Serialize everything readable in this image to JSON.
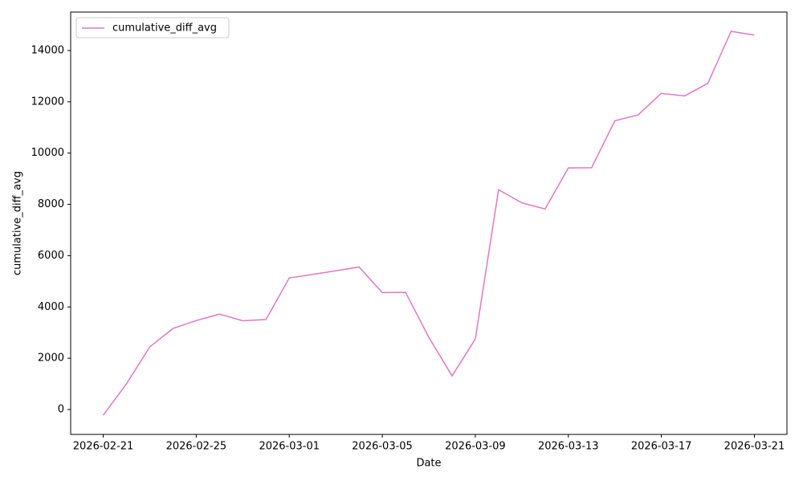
{
  "chart_data": {
    "type": "line",
    "xlabel": "Date",
    "ylabel": "cumulative_diff_avg",
    "x": [
      "2026-02-21",
      "2026-02-22",
      "2026-02-23",
      "2026-02-24",
      "2026-02-25",
      "2026-02-26",
      "2026-02-27",
      "2026-02-28",
      "2026-03-01",
      "2026-03-02",
      "2026-03-03",
      "2026-03-04",
      "2026-03-05",
      "2026-03-06",
      "2026-03-07",
      "2026-03-08",
      "2026-03-09",
      "2026-03-10",
      "2026-03-11",
      "2026-03-12",
      "2026-03-13",
      "2026-03-14",
      "2026-03-15",
      "2026-03-16",
      "2026-03-17",
      "2026-03-18",
      "2026-03-19",
      "2026-03-20",
      "2026-03-21"
    ],
    "series": [
      {
        "name": "cumulative_diff_avg",
        "color": "#e377c2",
        "values": [
          -220,
          1000,
          2440,
          3160,
          3470,
          3720,
          3460,
          3510,
          5130,
          5270,
          5410,
          5560,
          4560,
          4570,
          2820,
          1310,
          2750,
          8570,
          8060,
          7820,
          9420,
          9430,
          11260,
          11490,
          12330,
          12230,
          12720,
          14750,
          14600
        ]
      }
    ],
    "xlim": [
      "2026-02-19T14:24",
      "2026-03-22T09:36"
    ],
    "xticks": [
      "2026-02-21",
      "2026-02-25",
      "2026-03-01",
      "2026-03-05",
      "2026-03-09",
      "2026-03-13",
      "2026-03-17",
      "2026-03-21"
    ],
    "ylim": [
      -970,
      15500
    ],
    "yticks": [
      0,
      2000,
      4000,
      6000,
      8000,
      10000,
      12000,
      14000
    ],
    "legend": "upper left"
  }
}
